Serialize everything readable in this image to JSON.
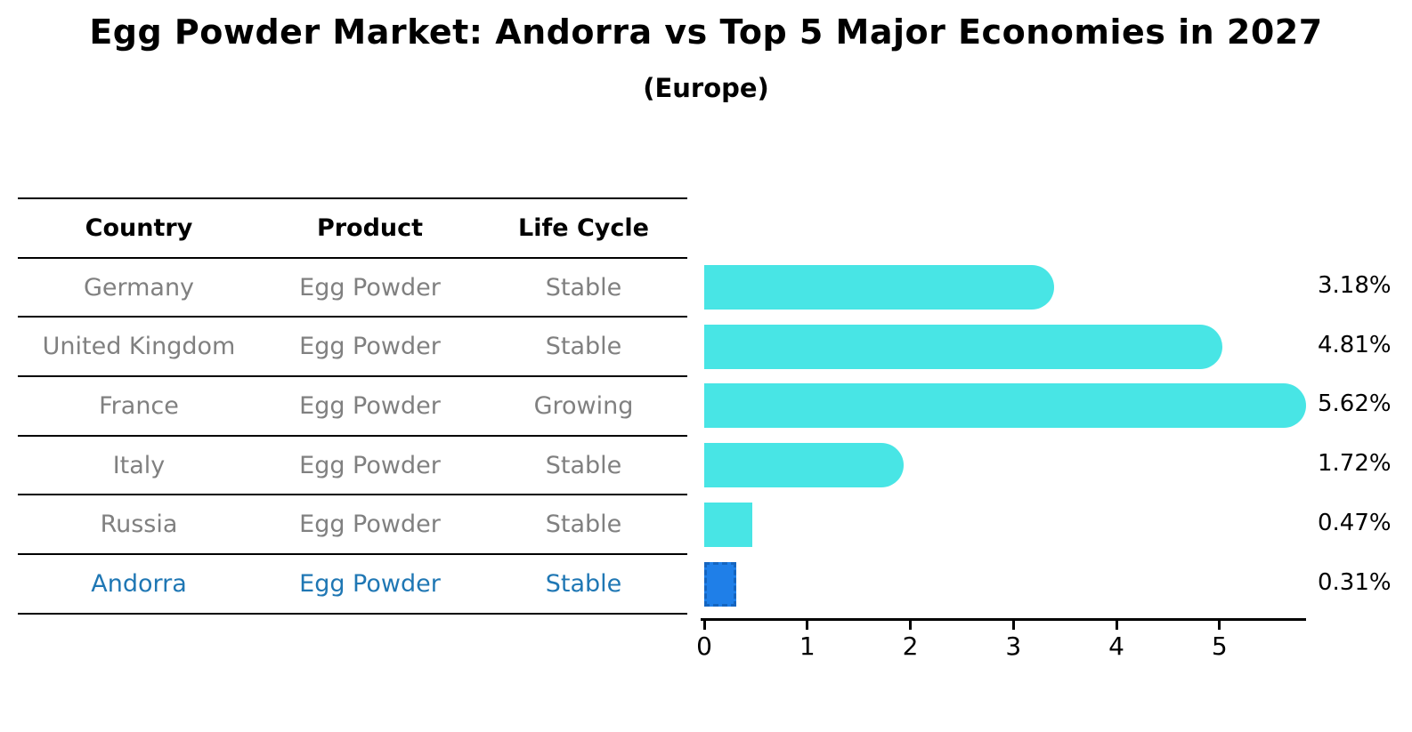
{
  "title": "Egg Powder Market: Andorra vs Top 5 Major Economies in 2027",
  "subtitle": "(Europe)",
  "table": {
    "headers": [
      "Country",
      "Product",
      "Life Cycle"
    ],
    "rows": [
      {
        "country": "Germany",
        "product": "Egg Powder",
        "life_cycle": "Stable",
        "highlight": false
      },
      {
        "country": "United Kingdom",
        "product": "Egg Powder",
        "life_cycle": "Stable",
        "highlight": false
      },
      {
        "country": "France",
        "product": "Egg Powder",
        "life_cycle": "Growing",
        "highlight": false
      },
      {
        "country": "Italy",
        "product": "Egg Powder",
        "life_cycle": "Stable",
        "highlight": false
      },
      {
        "country": "Russia",
        "product": "Egg Powder",
        "life_cycle": "Stable",
        "highlight": false
      },
      {
        "country": "Andorra",
        "product": "Egg Powder",
        "life_cycle": "Stable",
        "highlight": true
      }
    ]
  },
  "chart_data": {
    "type": "bar",
    "orientation": "horizontal",
    "title": "Egg Powder Market: Andorra vs Top 5 Major Economies in 2027",
    "subtitle": "(Europe)",
    "categories": [
      "Germany",
      "United Kingdom",
      "France",
      "Italy",
      "Russia",
      "Andorra"
    ],
    "values": [
      3.18,
      4.81,
      5.62,
      1.72,
      0.47,
      0.31
    ],
    "value_labels": [
      "3.18%",
      "4.81%",
      "5.62%",
      "1.72%",
      "0.47%",
      "0.31%"
    ],
    "xticks": [
      "0",
      "1",
      "2",
      "3",
      "4",
      "5"
    ],
    "xtick_values": [
      0,
      1,
      2,
      3,
      4,
      5
    ],
    "xlim": [
      0,
      5.84
    ],
    "xlabel": "",
    "ylabel": "",
    "grid": false,
    "legend": false,
    "highlight_index": 5,
    "bar_color": "#48E5E5",
    "highlight_bar_color": "#1F7FE8",
    "highlight_border_color": "#1565C0",
    "highlight_text_color": "#1F77B4",
    "text_gray": "#808080",
    "axis_color": "#000000"
  }
}
